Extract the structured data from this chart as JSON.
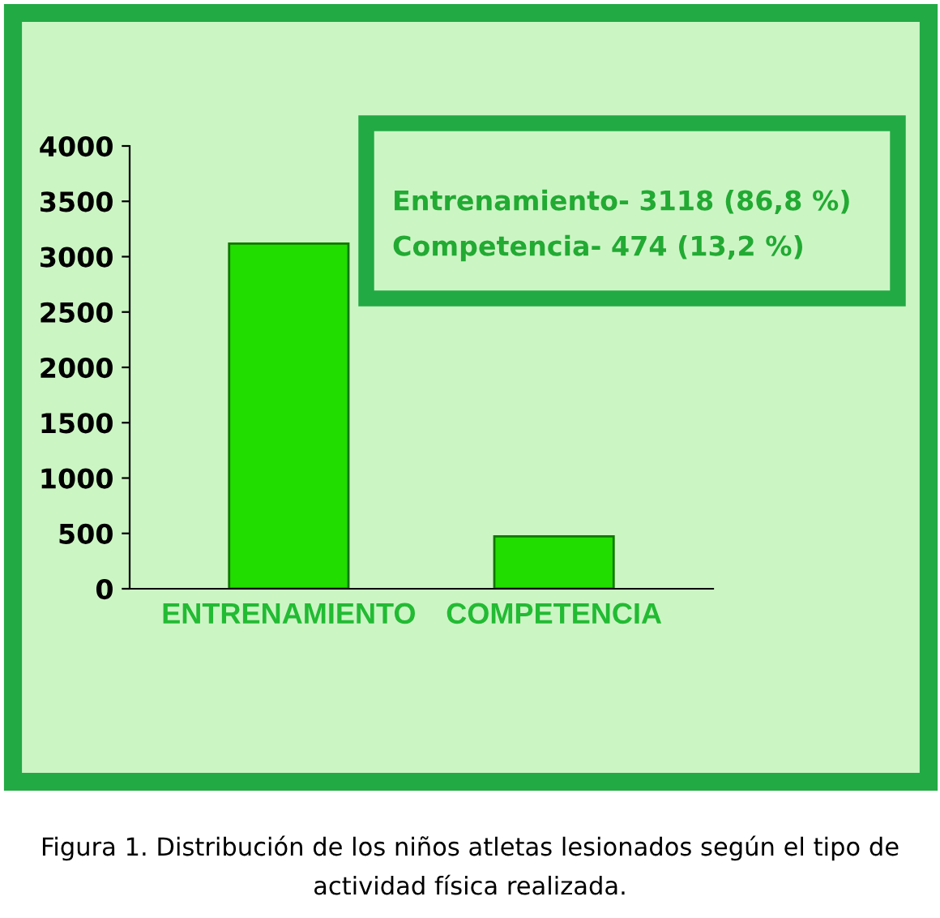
{
  "chart_data": {
    "type": "bar",
    "categories": [
      "ENTRENAMIENTO",
      "COMPETENCIA"
    ],
    "values": [
      3118,
      474
    ],
    "color": "#22dd00",
    "ylim": [
      0,
      4000
    ],
    "yticks": [
      0,
      500,
      1000,
      1500,
      2000,
      2500,
      3000,
      3500,
      4000
    ],
    "grid": false,
    "annotations": [
      "Entrenamiento- 3118 (86,8 %)",
      "Competencia- 474 (13,2 %)",
      "Figura 1. Distribución de los niños atletas lesionados según el tipo de actividad física realizada."
    ]
  }
}
